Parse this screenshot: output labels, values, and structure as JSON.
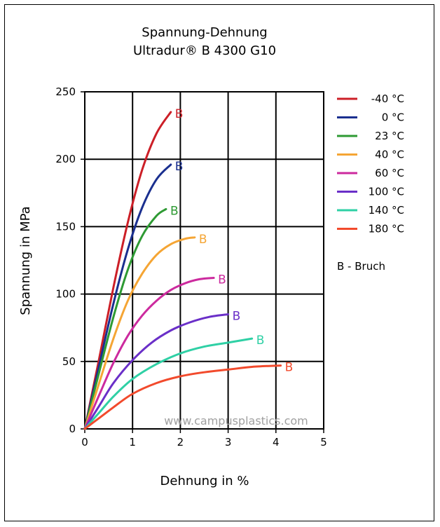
{
  "chart_data": {
    "type": "line",
    "title": "Spannung-Dehnung",
    "subtitle": "Ultradur® B 4300 G10",
    "xlabel": "Dehnung in %",
    "ylabel": "Spannung in MPa",
    "xlim": [
      0,
      5
    ],
    "ylim": [
      0,
      250
    ],
    "x_ticks": [
      "0",
      "1",
      "2",
      "3",
      "4",
      "5"
    ],
    "y_ticks": [
      "0",
      "50",
      "100",
      "150",
      "200",
      "250"
    ],
    "grid": true,
    "legend_position": "right",
    "watermark": "www.campusplastics.com",
    "legend_note": "B - Bruch",
    "series": [
      {
        "name": "-40 °C",
        "color": "#cc1f27",
        "end_label": "B",
        "x": [
          0,
          0.3,
          0.6,
          0.9,
          1.2,
          1.5,
          1.8
        ],
        "y": [
          0,
          52,
          105,
          153,
          192,
          219,
          235
        ]
      },
      {
        "name": "0 °C",
        "color": "#1a2f8f",
        "end_label": "B",
        "x": [
          0,
          0.3,
          0.6,
          0.9,
          1.2,
          1.5,
          1.8
        ],
        "y": [
          0,
          47,
          93,
          133,
          164,
          185,
          196
        ]
      },
      {
        "name": "23 °C",
        "color": "#2e9a33",
        "end_label": "B",
        "x": [
          0,
          0.3,
          0.6,
          0.9,
          1.2,
          1.5,
          1.7
        ],
        "y": [
          0,
          42,
          83,
          118,
          143,
          158,
          163
        ]
      },
      {
        "name": "40 °C",
        "color": "#f5a534",
        "end_label": "B",
        "x": [
          0,
          0.3,
          0.6,
          0.9,
          1.2,
          1.5,
          1.8,
          2.1,
          2.3
        ],
        "y": [
          0,
          34,
          67,
          95,
          115,
          129,
          137,
          141,
          142
        ]
      },
      {
        "name": "60 °C",
        "color": "#cc2a9e",
        "end_label": "B",
        "x": [
          0,
          0.3,
          0.6,
          0.9,
          1.2,
          1.5,
          1.8,
          2.1,
          2.4,
          2.7
        ],
        "y": [
          0,
          25,
          49,
          69,
          84,
          95,
          103,
          108,
          111,
          112
        ]
      },
      {
        "name": "100 °C",
        "color": "#6a2fc8",
        "end_label": "B",
        "x": [
          0,
          0.3,
          0.6,
          1.0,
          1.4,
          1.8,
          2.2,
          2.6,
          3.0
        ],
        "y": [
          0,
          17,
          34,
          51,
          64,
          73,
          79,
          83,
          85
        ]
      },
      {
        "name": "140 °C",
        "color": "#2fd0a5",
        "end_label": "B",
        "x": [
          0,
          0.3,
          0.6,
          1.0,
          1.5,
          2.0,
          2.5,
          3.0,
          3.5
        ],
        "y": [
          0,
          12,
          24,
          37,
          48,
          56,
          61,
          64,
          67
        ]
      },
      {
        "name": "180 °C",
        "color": "#f24a2c",
        "end_label": "B",
        "x": [
          0,
          0.3,
          0.6,
          1.0,
          1.5,
          2.0,
          2.5,
          3.0,
          3.5,
          4.1
        ],
        "y": [
          0,
          8,
          16,
          26,
          34,
          39,
          42,
          44,
          46,
          47
        ]
      }
    ]
  }
}
